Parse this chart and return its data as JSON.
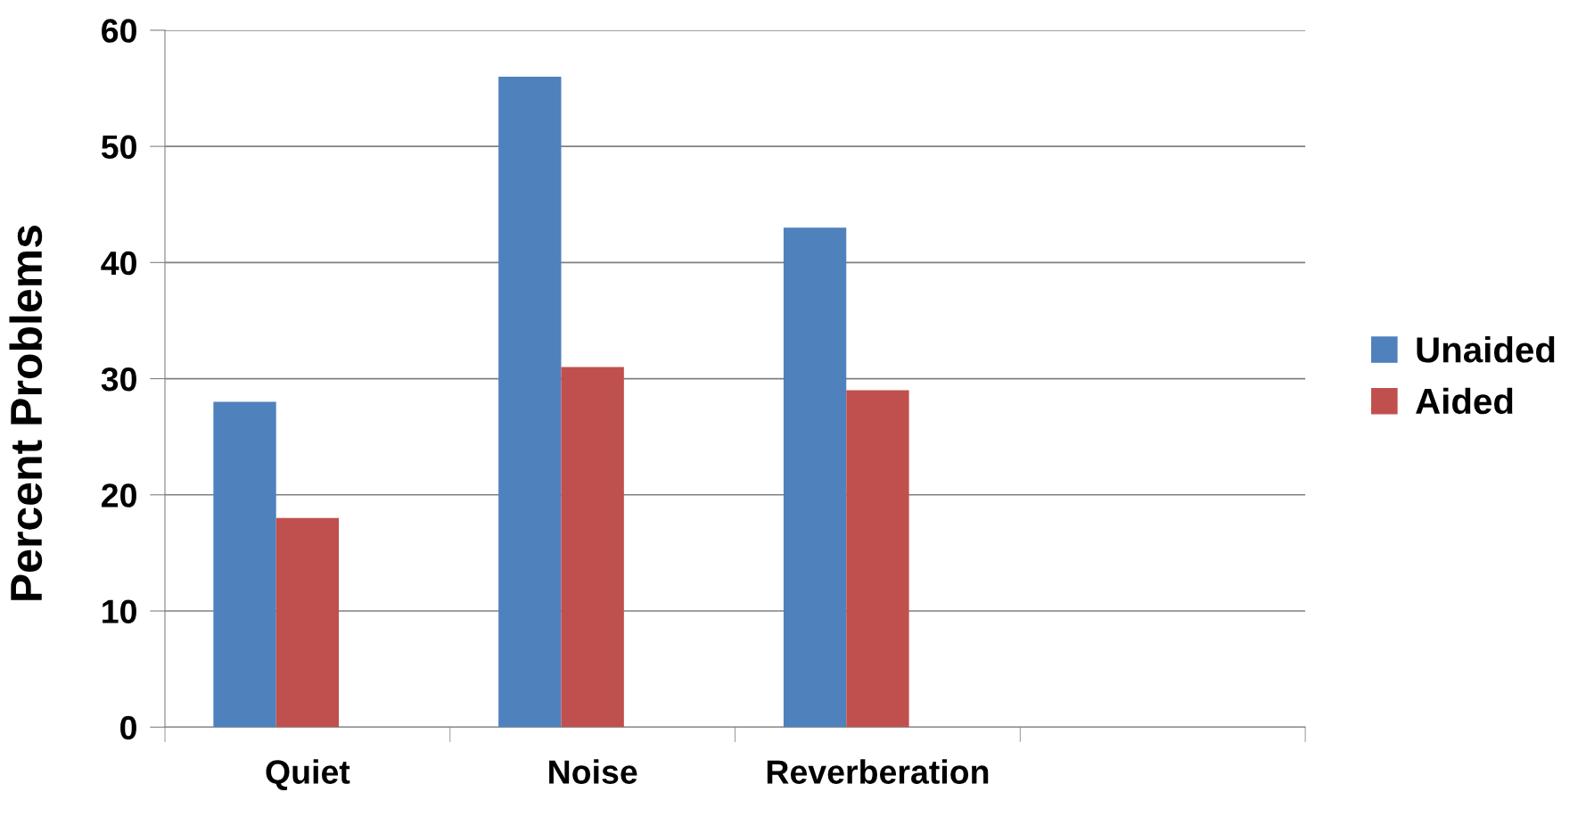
{
  "chart_data": {
    "type": "bar",
    "ylabel": "Percent Problems",
    "categories": [
      "Quiet",
      "Noise",
      "Reverberation",
      null
    ],
    "series": [
      {
        "name": "Unaided",
        "color": "#4f81bd",
        "values": [
          28,
          56,
          43,
          null
        ]
      },
      {
        "name": "Aided",
        "color": "#c0504d",
        "values": [
          18,
          31,
          29,
          null
        ]
      }
    ],
    "ylim": [
      0,
      60
    ],
    "yticks": [
      0,
      10,
      20,
      30,
      40,
      50,
      60
    ],
    "grid": "y",
    "legend": "right"
  }
}
